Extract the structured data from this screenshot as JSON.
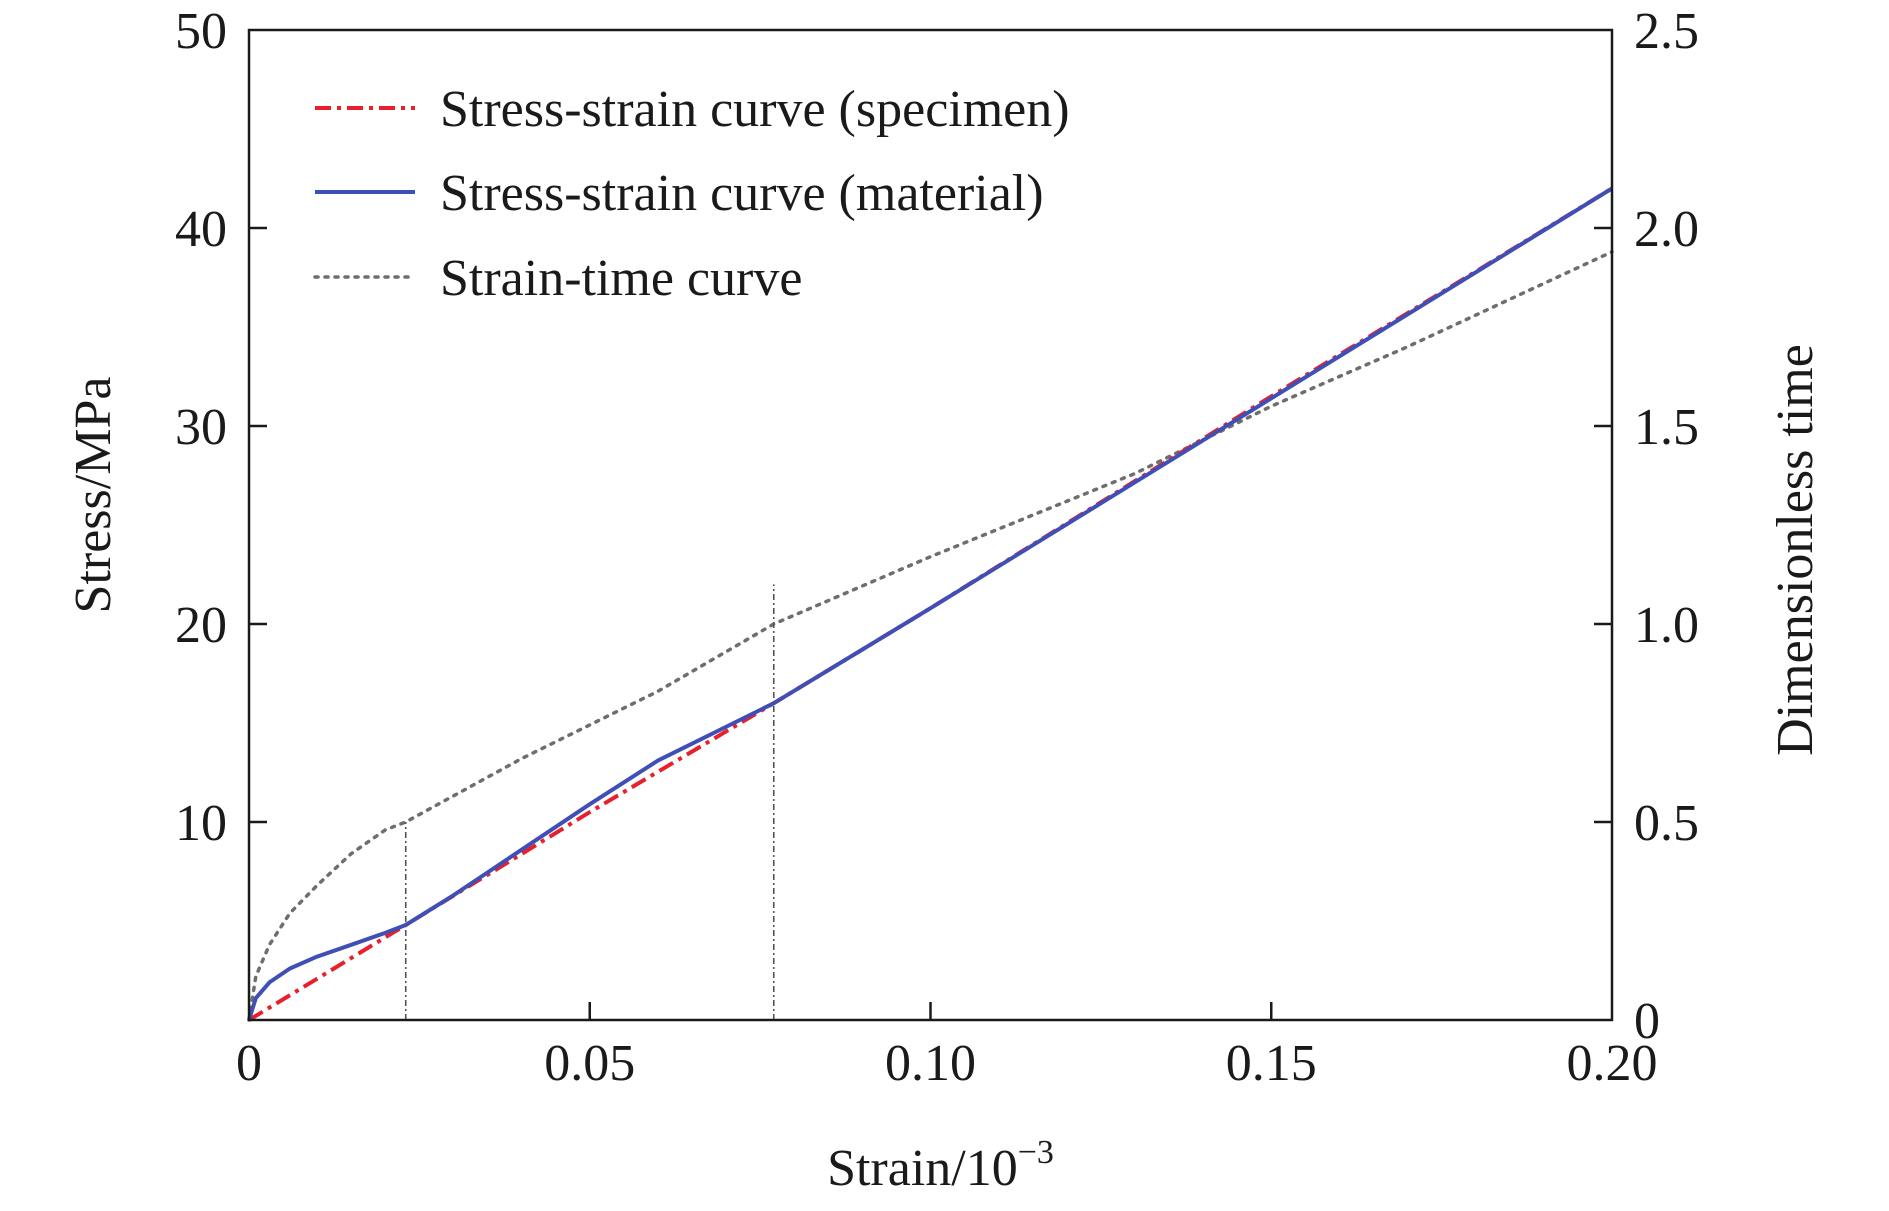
{
  "chart_data": {
    "type": "line",
    "xlabel": "Strain/10",
    "xlabel_sup": "−3",
    "ylabel": "Stress/MPa",
    "y2label": "Dimensionless time",
    "xlim": [
      0,
      0.2
    ],
    "ylim": [
      0,
      50
    ],
    "y2lim": [
      0,
      2.5
    ],
    "x_ticks": [
      0,
      0.05,
      0.1,
      0.15,
      0.2
    ],
    "x_tick_labels": [
      "0",
      "0.05",
      "0.10",
      "0.15",
      "0.20"
    ],
    "y_ticks": [
      10,
      20,
      30,
      40,
      50
    ],
    "y_tick_labels": [
      "10",
      "20",
      "30",
      "40",
      "50"
    ],
    "y2_ticks": [
      0,
      0.5,
      1.0,
      1.5,
      2.0,
      2.5
    ],
    "y2_tick_labels": [
      "0",
      "0.5",
      "1.0",
      "1.5",
      "2.0",
      "2.5"
    ],
    "grid": false,
    "legend_position": "top-left",
    "vlines": [
      {
        "x": 0.023,
        "y_top": 10
      },
      {
        "x": 0.077,
        "y_top": 22
      }
    ],
    "series": [
      {
        "name": "Stress-strain curve (specimen)",
        "axis": "left",
        "style": "dashdot",
        "color": "#e8202a",
        "x": [
          0,
          0.023,
          0.05,
          0.077,
          0.1,
          0.15,
          0.2
        ],
        "y": [
          0,
          4.8,
          10.5,
          16.0,
          20.8,
          31.5,
          42.0
        ]
      },
      {
        "name": "Stress-strain curve (material)",
        "axis": "left",
        "style": "solid",
        "color": "#3f4fb5",
        "x": [
          0,
          0.001,
          0.003,
          0.006,
          0.01,
          0.015,
          0.02,
          0.023,
          0.03,
          0.04,
          0.05,
          0.06,
          0.077,
          0.1,
          0.15,
          0.2
        ],
        "y": [
          0,
          1.1,
          1.9,
          2.6,
          3.2,
          3.8,
          4.4,
          4.8,
          6.3,
          8.6,
          10.9,
          13.1,
          16.0,
          20.8,
          31.4,
          42.0
        ]
      },
      {
        "name": "Strain-time curve",
        "axis": "right",
        "style": "dotted",
        "color": "#6e6e6e",
        "x": [
          0,
          0.001,
          0.003,
          0.006,
          0.01,
          0.015,
          0.02,
          0.023,
          0.04,
          0.06,
          0.077,
          0.1,
          0.13,
          0.15,
          0.17,
          0.2
        ],
        "y": [
          0,
          0.11,
          0.19,
          0.27,
          0.34,
          0.42,
          0.48,
          0.5,
          0.66,
          0.83,
          1.0,
          1.17,
          1.38,
          1.55,
          1.7,
          1.94
        ]
      }
    ]
  }
}
